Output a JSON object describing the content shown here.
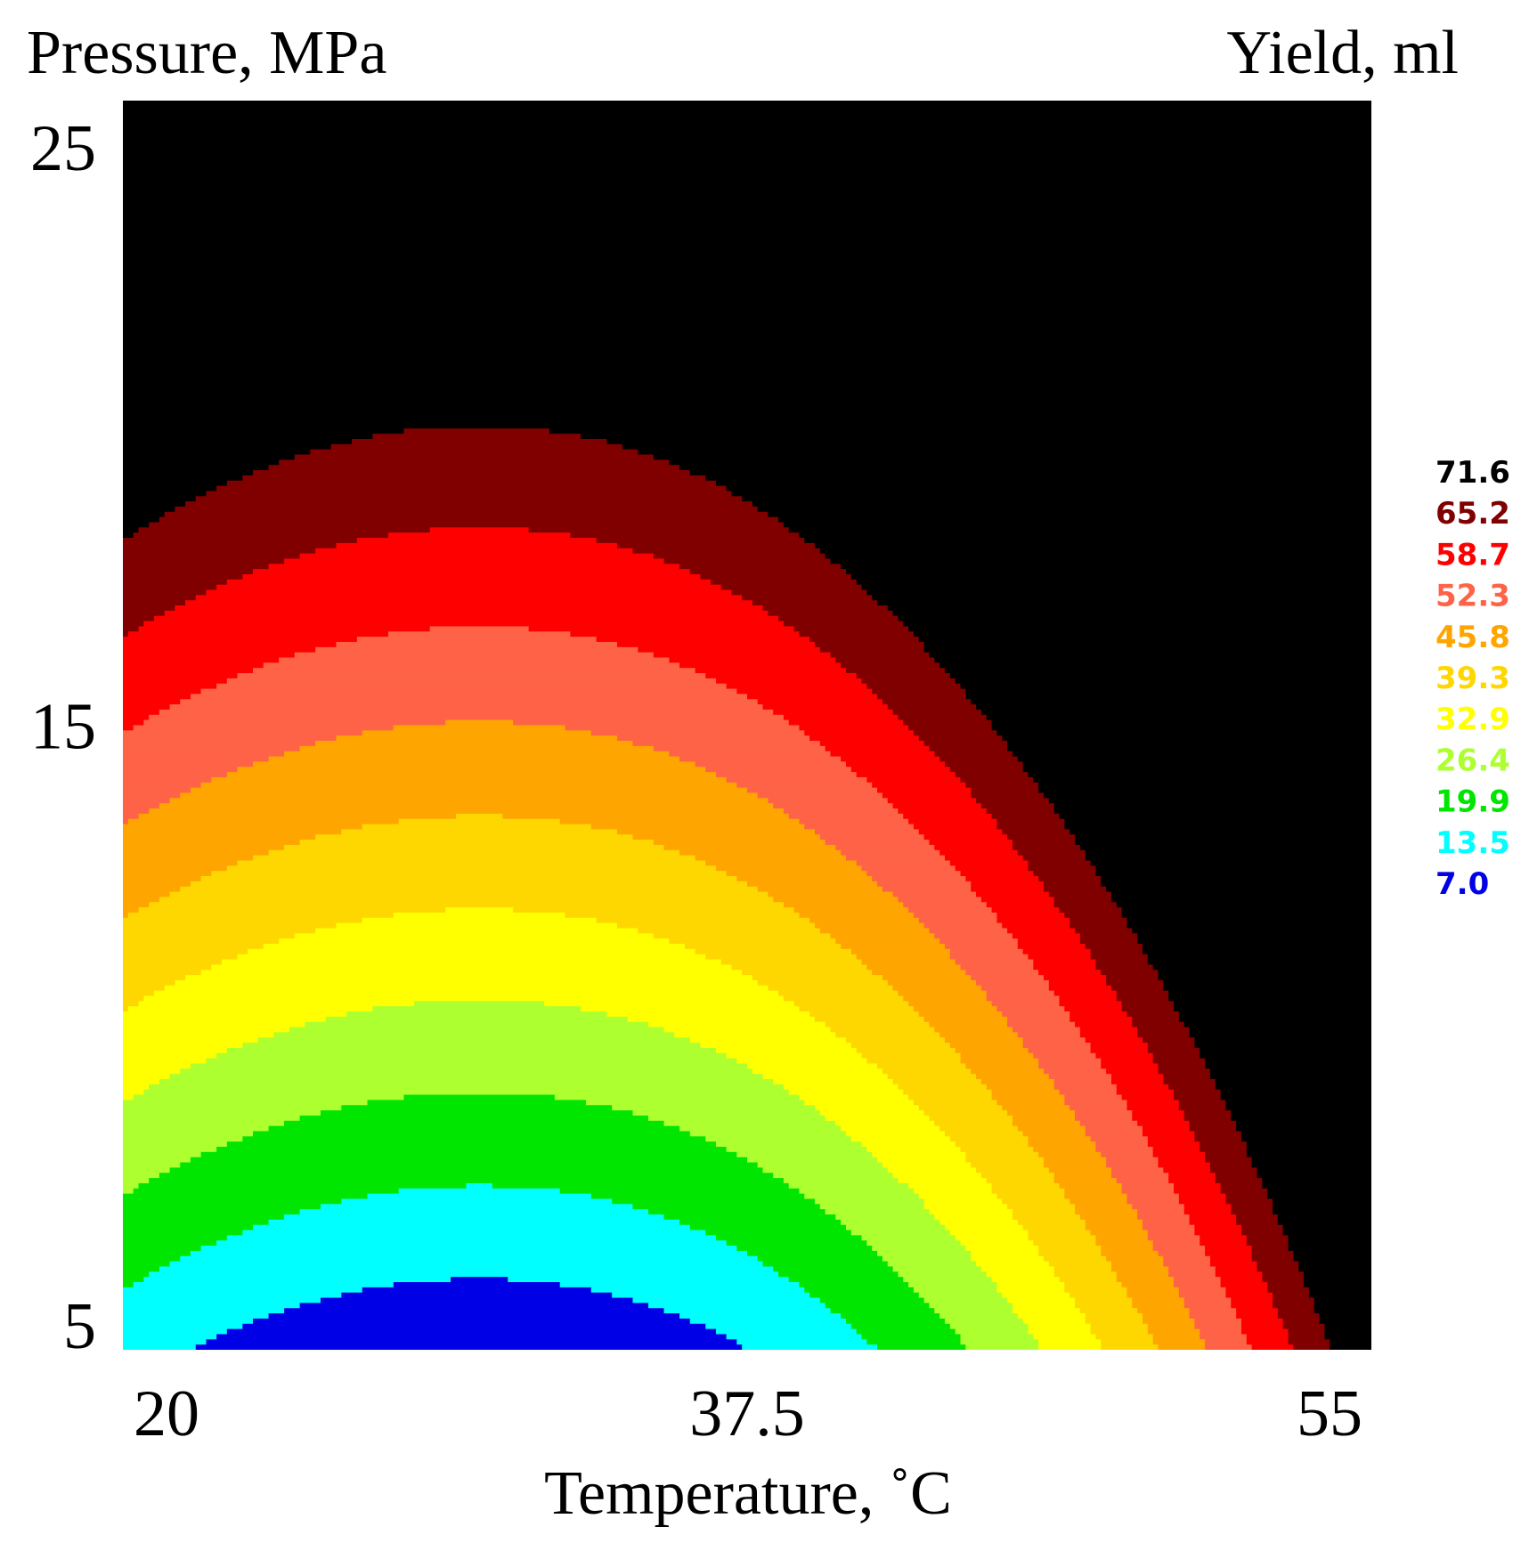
{
  "chart_data": {
    "type": "heatmap",
    "subtype": "filled-contour",
    "title": "",
    "ylabel": "Pressure, MPa",
    "xlabel": "Temperature, ˚C",
    "colorbar_title": "Yield, ml",
    "xlim": [
      20,
      55
    ],
    "ylim": [
      5,
      25
    ],
    "x_ticks": [
      {
        "value": 20,
        "label": "20"
      },
      {
        "value": 37.5,
        "label": "37.5"
      },
      {
        "value": 55,
        "label": "55"
      }
    ],
    "y_ticks": [
      {
        "value": 5,
        "label": "5"
      },
      {
        "value": 15,
        "label": "15"
      },
      {
        "value": 25,
        "label": "25"
      }
    ],
    "levels": [
      7.0,
      13.5,
      19.9,
      26.4,
      32.9,
      39.3,
      45.8,
      52.3,
      58.7,
      65.2,
      71.6
    ],
    "level_labels": [
      "7.0",
      "13.5",
      "19.9",
      "26.4",
      "32.9",
      "39.3",
      "45.8",
      "52.3",
      "58.7",
      "65.2",
      "71.6"
    ],
    "level_colors": [
      "#0000e6",
      "#00ffff",
      "#00e600",
      "#adff2f",
      "#ffff00",
      "#ffd700",
      "#ffa500",
      "#ff6347",
      "#ff0000",
      "#800000",
      "#000000"
    ],
    "legend_position": "right",
    "grid": false,
    "surface_description": "minimum (~7 ml) near T≈30 ˚C, P=5 MPa; yield rises with pressure and strongly with temperature; maximum (~72 ml) at T=55 ˚C, P=25 MPa"
  }
}
